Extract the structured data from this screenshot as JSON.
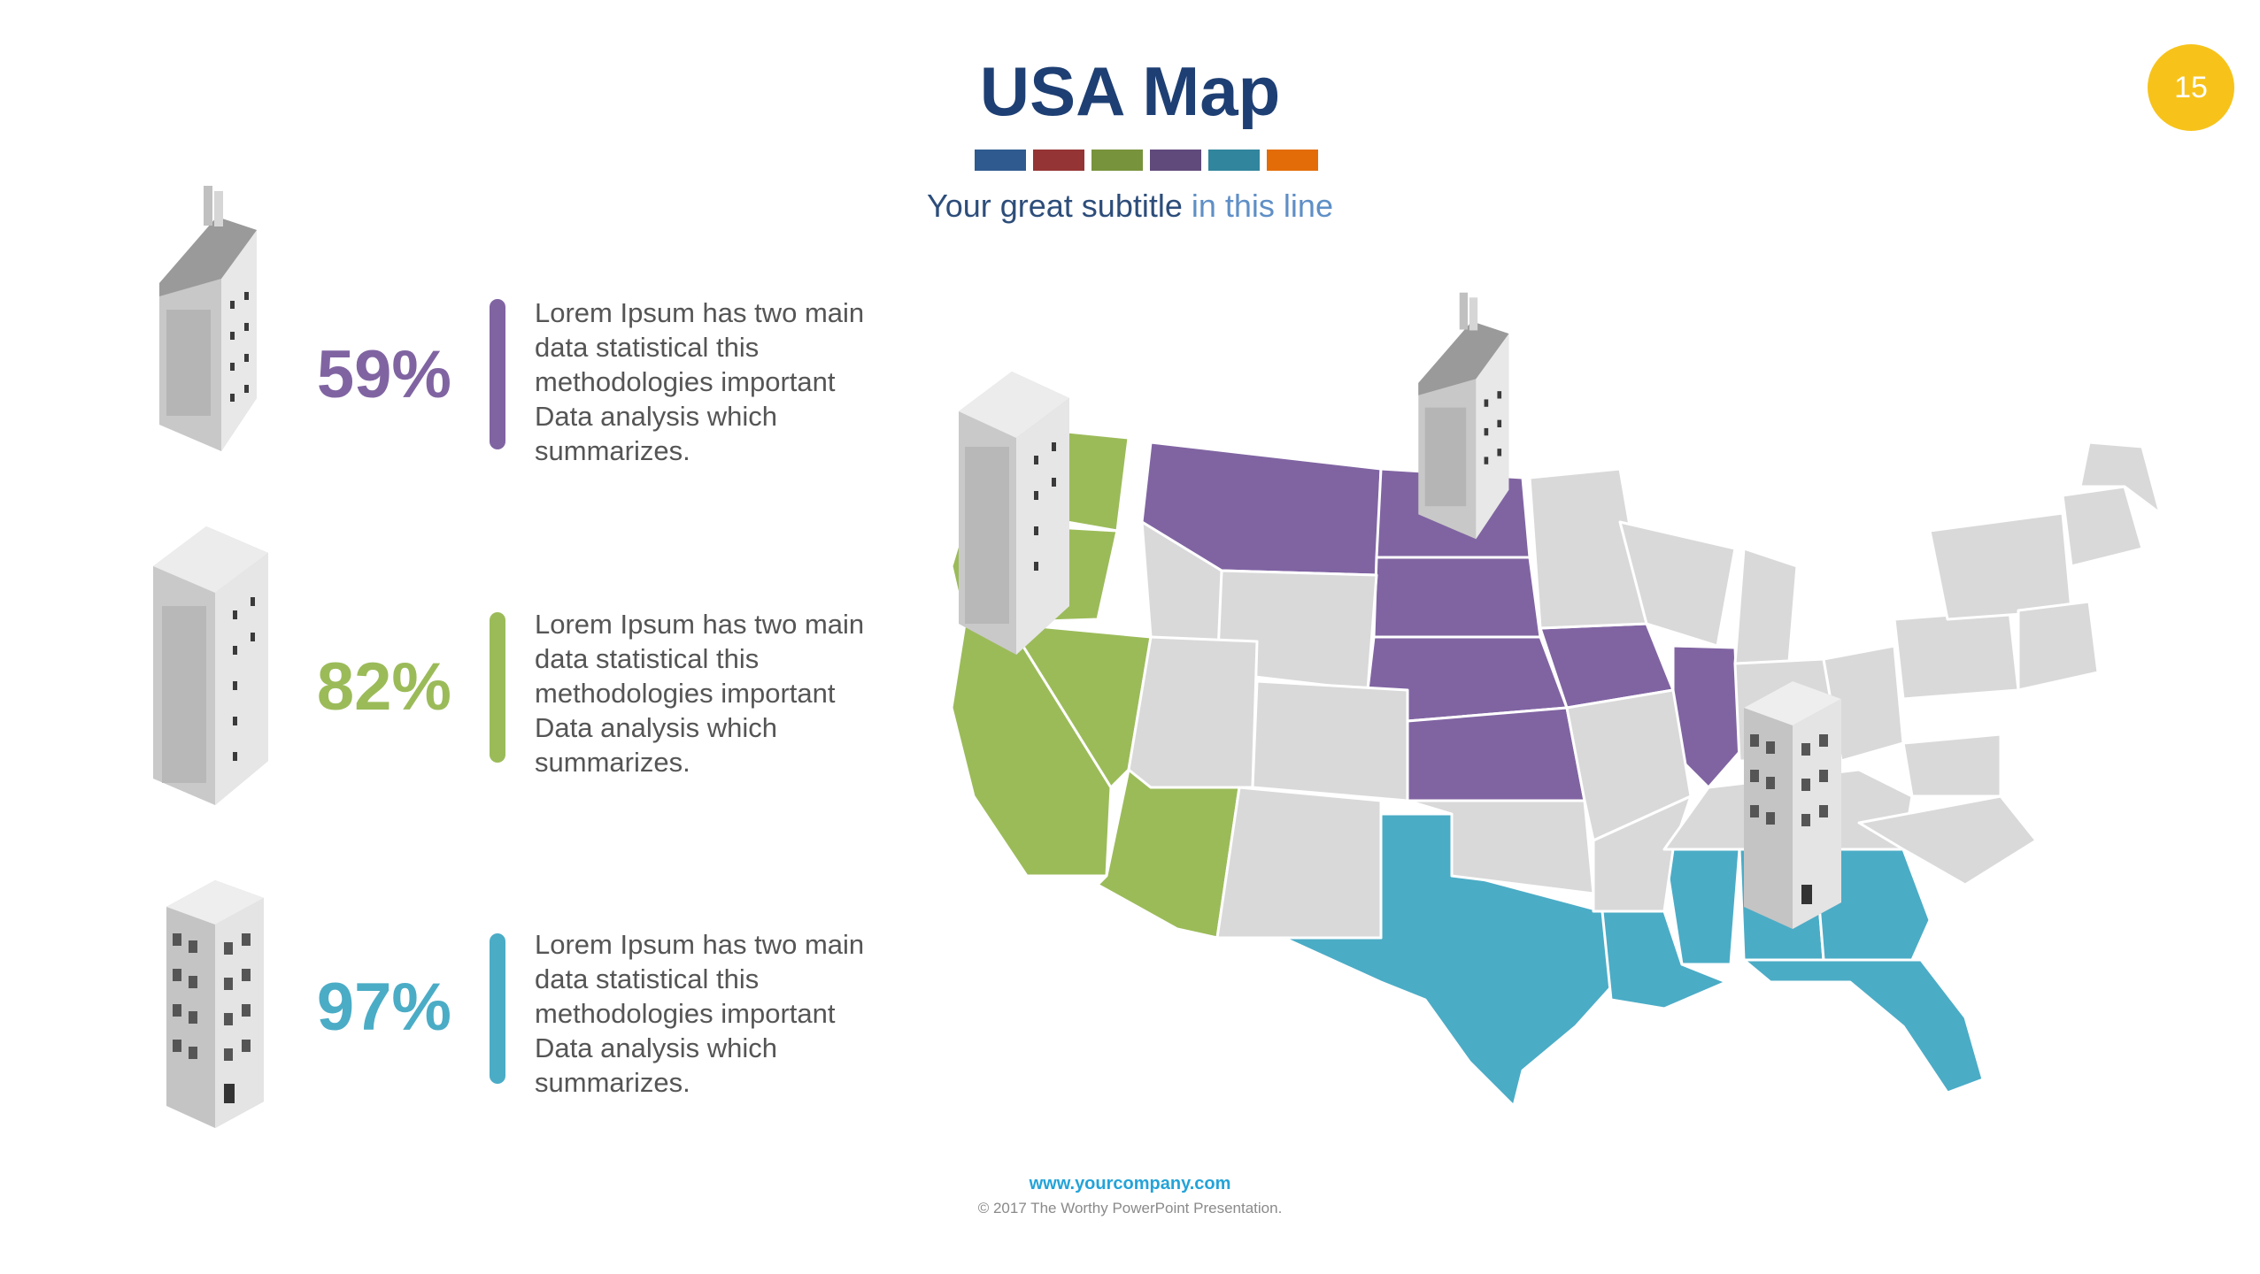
{
  "title": "USA Map",
  "subtitle_main": "Your great subtitle",
  "subtitle_accent": "in this line",
  "page_number": "15",
  "swatch_colors": [
    "#2f5a8f",
    "#953434",
    "#77933c",
    "#604a7b",
    "#31859c",
    "#e36c09"
  ],
  "stats": [
    {
      "percent": "59%",
      "color": "#8064a2",
      "text": [
        "Lorem Ipsum has two main",
        "data statistical this",
        "methodologies important",
        "Data analysis which",
        "summarizes."
      ]
    },
    {
      "percent": "82%",
      "color": "#9bbb59",
      "text": [
        "Lorem Ipsum has two main",
        "data statistical this",
        "methodologies important",
        "Data analysis which",
        "summarizes."
      ]
    },
    {
      "percent": "97%",
      "color": "#4bacc6",
      "text": [
        "Lorem Ipsum has two main",
        "data statistical this",
        "methodologies important",
        "Data analysis which",
        "summarizes."
      ]
    }
  ],
  "map_colors": {
    "green": "#9bbb59",
    "purple": "#8064a2",
    "blue": "#4bacc6",
    "gray": "#d9d9d9"
  },
  "footer": {
    "url": "www.yourcompany.com",
    "copyright": "© 2017 The Worthy PowerPoint Presentation."
  }
}
